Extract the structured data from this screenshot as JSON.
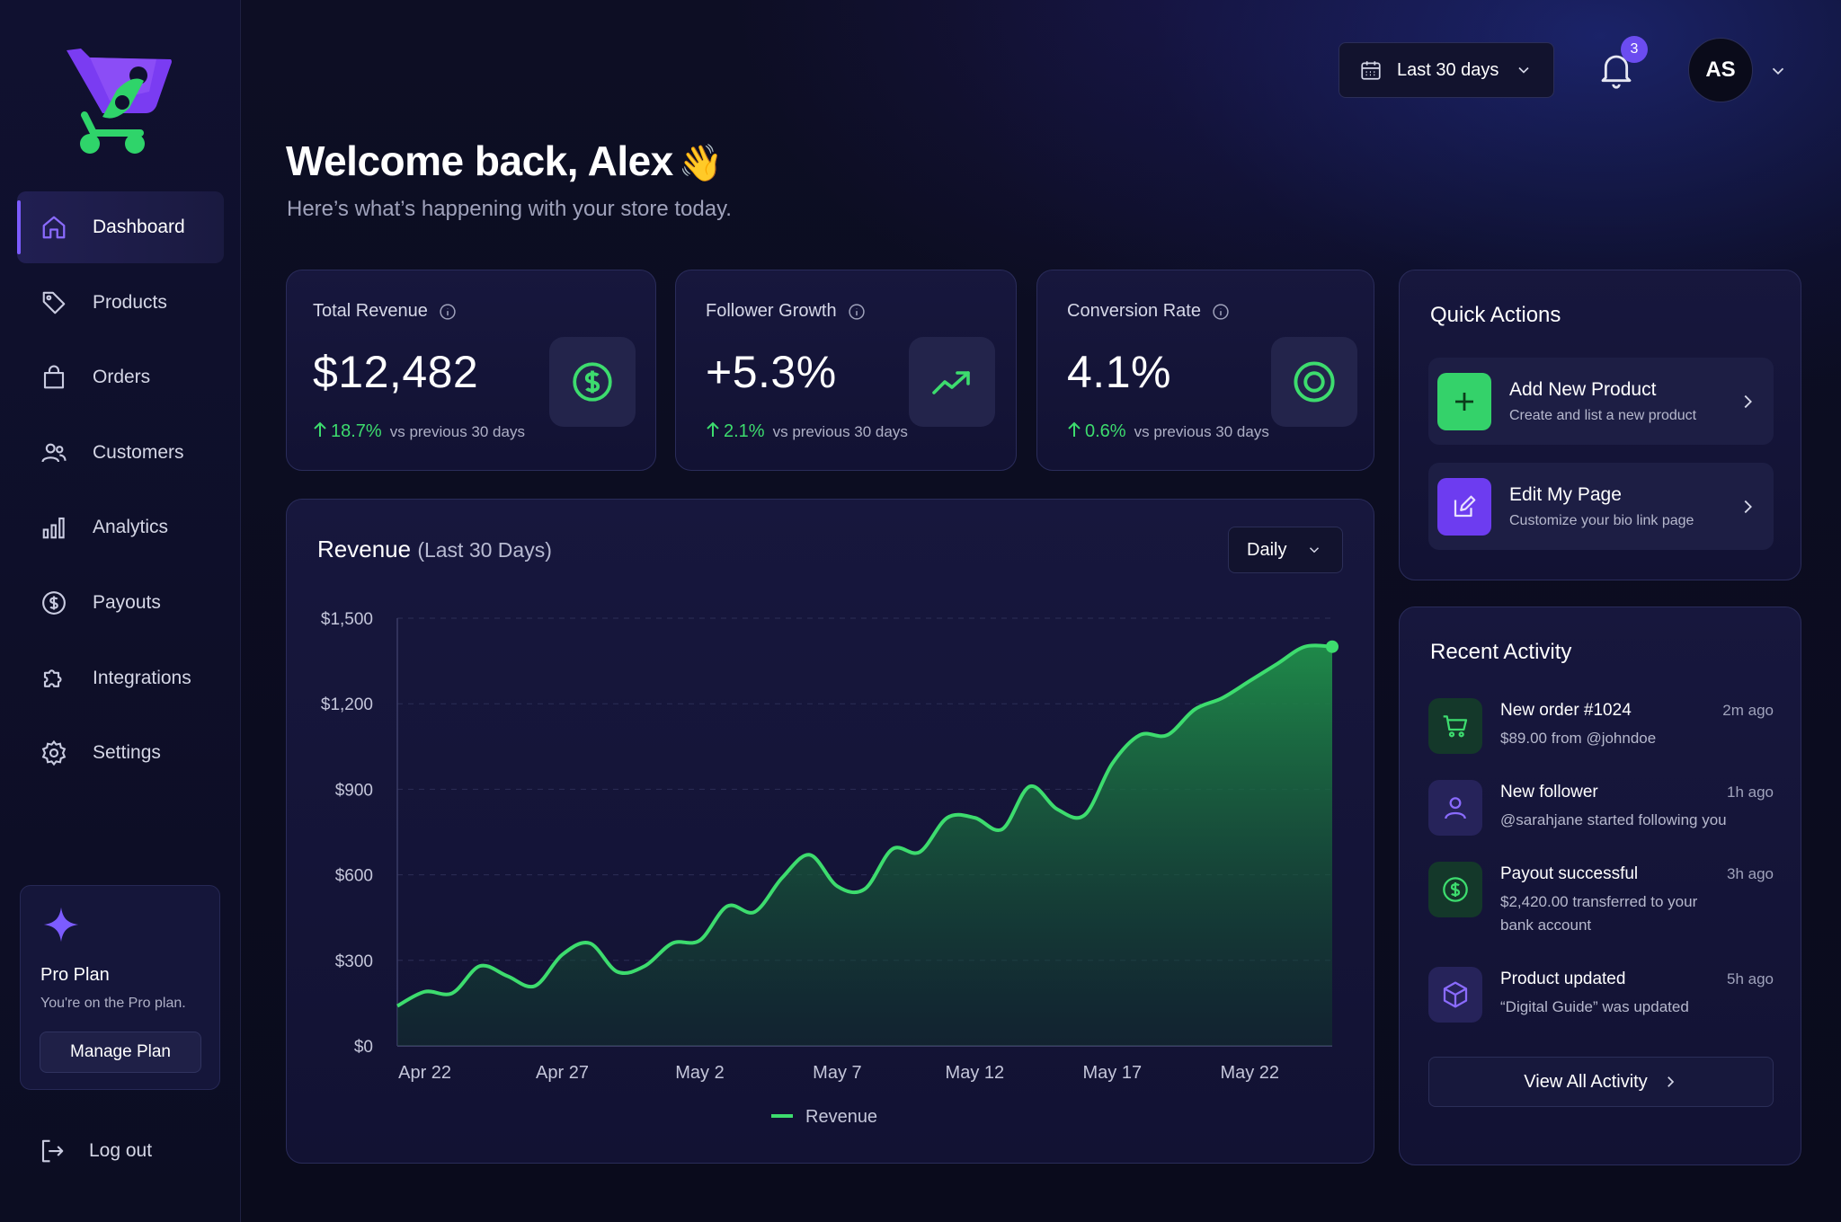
{
  "sidebar": {
    "items": [
      {
        "label": "Dashboard",
        "icon": "home-icon"
      },
      {
        "label": "Products",
        "icon": "tag-icon"
      },
      {
        "label": "Orders",
        "icon": "shopping-bag-icon"
      },
      {
        "label": "Customers",
        "icon": "users-icon"
      },
      {
        "label": "Analytics",
        "icon": "bar-chart-icon"
      },
      {
        "label": "Payouts",
        "icon": "dollar-circle-icon"
      },
      {
        "label": "Integrations",
        "icon": "puzzle-icon"
      },
      {
        "label": "Settings",
        "icon": "gear-icon"
      }
    ],
    "plan": {
      "title": "Pro Plan",
      "subtitle": "You're on the Pro plan.",
      "button": "Manage Plan"
    },
    "logout": "Log out"
  },
  "header": {
    "date_range": "Last 30 days",
    "notification_count": "3",
    "avatar_initials": "AS"
  },
  "welcome": {
    "title": "Welcome back, Alex",
    "wave": "👋",
    "subtitle": "Here’s what’s happening with your store today."
  },
  "stats": [
    {
      "label": "Total Revenue",
      "value": "$12,482",
      "change": "18.7%",
      "compare": "vs previous 30 days",
      "icon": "dollar-circle-icon"
    },
    {
      "label": "Follower Growth",
      "value": "+5.3%",
      "change": "2.1%",
      "compare": "vs previous 30 days",
      "icon": "trend-up-icon"
    },
    {
      "label": "Conversion Rate",
      "value": "4.1%",
      "change": "0.6%",
      "compare": "vs previous 30 days",
      "icon": "target-icon"
    }
  ],
  "revenue_chart": {
    "title": "Revenue",
    "subtitle": "(Last 30 Days)",
    "granularity": "Daily",
    "legend": "Revenue"
  },
  "chart_data": {
    "type": "area",
    "title": "Revenue (Last 30 Days)",
    "ylim": [
      0,
      1500
    ],
    "y_ticks": [
      "$0",
      "$300",
      "$600",
      "$900",
      "$1,200",
      "$1,500"
    ],
    "y_tick_values": [
      0,
      300,
      600,
      900,
      1200,
      1500
    ],
    "x_tick_labels": [
      "Apr 22",
      "Apr 27",
      "May 2",
      "May 7",
      "May 12",
      "May 17",
      "May 22"
    ],
    "x_tick_positions": [
      1,
      6,
      11,
      16,
      21,
      26,
      31
    ],
    "series": [
      {
        "name": "Revenue",
        "color": "#3ddc6e",
        "x": [
          0,
          1,
          2,
          3,
          4,
          5,
          6,
          7,
          8,
          9,
          10,
          11,
          12,
          13,
          14,
          15,
          16,
          17,
          18,
          19,
          20,
          21,
          22,
          23,
          24,
          25,
          26,
          27,
          28,
          29,
          30,
          31,
          32,
          33,
          34
        ],
        "values": [
          140,
          190,
          185,
          280,
          245,
          210,
          320,
          360,
          260,
          280,
          360,
          370,
          490,
          470,
          590,
          670,
          560,
          550,
          690,
          680,
          800,
          800,
          760,
          910,
          830,
          810,
          990,
          1090,
          1090,
          1180,
          1220,
          1280,
          1340,
          1400,
          1400
        ]
      }
    ],
    "grid": true,
    "legend_position": "bottom-center"
  },
  "quick_actions": {
    "title": "Quick Actions",
    "items": [
      {
        "title": "Add New Product",
        "subtitle": "Create and list a new product",
        "icon": "plus-icon",
        "color": "#34d26a"
      },
      {
        "title": "Edit My Page",
        "subtitle": "Customize your bio link page",
        "icon": "edit-icon",
        "color": "#6d3cf0"
      }
    ]
  },
  "activity": {
    "title": "Recent Activity",
    "items": [
      {
        "title": "New order #1024",
        "subtitle": "$89.00 from @johndoe",
        "time": "2m ago",
        "icon": "cart-icon"
      },
      {
        "title": "New follower",
        "subtitle": "@sarahjane started following you",
        "time": "1h ago",
        "icon": "user-icon"
      },
      {
        "title": "Payout successful",
        "subtitle": "$2,420.00 transferred to your bank account",
        "time": "3h ago",
        "icon": "dollar-circle-icon"
      },
      {
        "title": "Product updated",
        "subtitle": "“Digital Guide” was updated",
        "time": "5h ago",
        "icon": "box-icon"
      }
    ],
    "view_all": "View All Activity"
  },
  "colors": {
    "accent_green": "#3ddc6e",
    "accent_purple": "#7c5cff",
    "background": "#0b0c1e",
    "card": "#15153a"
  }
}
